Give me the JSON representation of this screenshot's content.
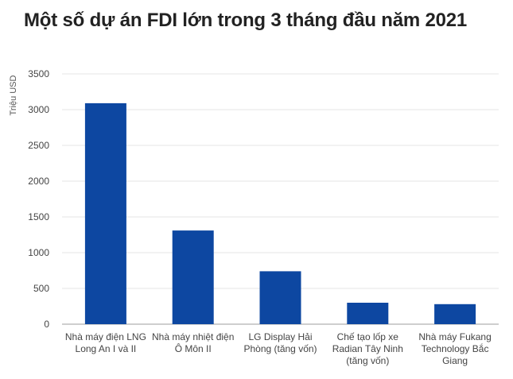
{
  "chart_data": {
    "type": "bar",
    "title": "Một số dự án FDI lớn trong 3 tháng đầu năm 2021",
    "ylabel": "Triệu USD",
    "xlabel": "",
    "ylim": [
      0,
      3500
    ],
    "yticks": [
      0,
      500,
      1000,
      1500,
      2000,
      2500,
      3000,
      3500
    ],
    "grid": true,
    "categories": [
      [
        "Nhà máy điện LNG",
        "Long An I và II"
      ],
      [
        "Nhà máy nhiệt điện",
        "Ô Môn II"
      ],
      [
        "LG Display Hải",
        "Phòng (tăng vốn)"
      ],
      [
        "Chế tạo lốp xe",
        "Radian Tây Ninh",
        "(tăng vốn)"
      ],
      [
        "Nhà máy Fukang",
        "Technology Bắc",
        "Giang"
      ]
    ],
    "values": [
      3090,
      1310,
      740,
      300,
      280
    ],
    "bar_color": "#0d47a1",
    "grid_color": "#e6e6e6"
  }
}
